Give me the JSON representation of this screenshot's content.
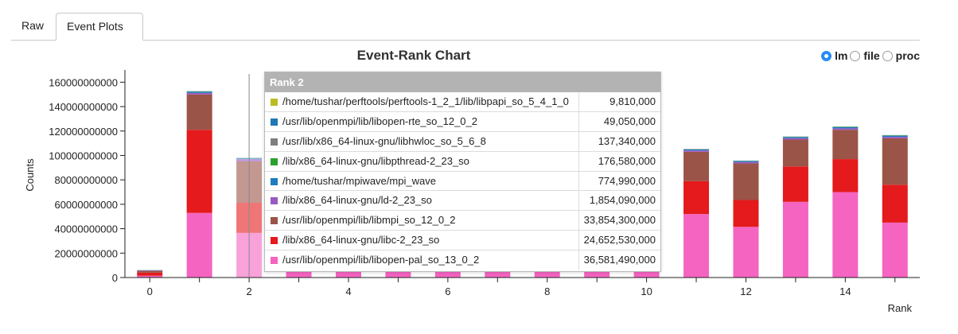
{
  "tabs": {
    "raw": "Raw",
    "event_plots": "Event Plots"
  },
  "chart_data": {
    "type": "bar",
    "title": "Event-Rank Chart",
    "xlabel": "Rank",
    "ylabel": "Counts",
    "ylim": [
      0,
      170000000000
    ],
    "xlim": [
      -0.5,
      15.5
    ],
    "yticks": [
      0,
      20000000000,
      40000000000,
      60000000000,
      80000000000,
      100000000000,
      120000000000,
      140000000000,
      160000000000
    ],
    "ytick_labels": [
      "0",
      "20000000000",
      "40000000000",
      "60000000000",
      "80000000000",
      "100000000000",
      "120000000000",
      "140000000000",
      "160000000000"
    ],
    "xticks": [
      0,
      2,
      4,
      6,
      8,
      10,
      12,
      14
    ],
    "xtick_labels": [
      "0",
      "2",
      "4",
      "6",
      "8",
      "10",
      "12",
      "14"
    ],
    "categories": [
      0,
      1,
      2,
      3,
      4,
      5,
      6,
      7,
      8,
      9,
      10,
      11,
      12,
      13,
      14,
      15
    ],
    "stacked": true,
    "series": [
      {
        "name": "/usr/lib/openmpi/lib/libopen-pal.so.13.0.2",
        "color": "#f564c1",
        "values": [
          1500000000,
          53000000000,
          36581490000,
          45000000000,
          41000000000,
          40000000000,
          42000000000,
          44000000000,
          47000000000,
          42000000000,
          43000000000,
          52000000000,
          41500000000,
          62000000000,
          70000000000,
          45000000000
        ]
      },
      {
        "name": "/lib/x86_64-linux-gnu/libc-2.23.so",
        "color": "#e41a1c",
        "values": [
          2500000000,
          68000000000,
          24652530000,
          49000000000,
          39000000000,
          24000000000,
          28000000000,
          27000000000,
          70000000000,
          35000000000,
          31000000000,
          27000000000,
          22000000000,
          29000000000,
          27000000000,
          31000000000
        ]
      },
      {
        "name": "/usr/lib/openmpi/lib/libmpi.so.12.0.2",
        "color": "#9b5448",
        "values": [
          1500000000,
          29000000000,
          33854300000,
          42000000000,
          23000000000,
          22000000000,
          26000000000,
          29000000000,
          22000000000,
          21000000000,
          27000000000,
          24000000000,
          30000000000,
          22000000000,
          24000000000,
          38000000000
        ]
      },
      {
        "name": "/lib/x86_64-linux-gnu/ld-2.23.so",
        "color": "#9a59c2",
        "values": [
          300000000,
          1200000000,
          1854090000,
          1200000000,
          1200000000,
          1100000000,
          1100000000,
          1100000000,
          1100000000,
          1100000000,
          1100000000,
          1100000000,
          1100000000,
          1200000000,
          1200000000,
          1200000000
        ]
      },
      {
        "name": "/home/tushar/mpiwave/mpi_wave",
        "color": "#1f7bbf",
        "values": [
          200000000,
          1000000000,
          774990000,
          1000000000,
          800000000,
          800000000,
          800000000,
          800000000,
          800000000,
          800000000,
          800000000,
          800000000,
          800000000,
          900000000,
          1000000000,
          1000000000
        ]
      },
      {
        "name": "/lib/x86_64-linux-gnu/libpthread-2.23.so",
        "color": "#2ca02c",
        "values": [
          50000000,
          300000000,
          176580000,
          300000000,
          200000000,
          200000000,
          200000000,
          200000000,
          200000000,
          200000000,
          200000000,
          200000000,
          200000000,
          200000000,
          300000000,
          300000000
        ]
      },
      {
        "name": "/usr/lib/x86_64-linux-gnu/libhwloc.so.5.6.8",
        "color": "#7f7f7f",
        "values": [
          30000000,
          150000000,
          137340000,
          150000000,
          140000000,
          140000000,
          140000000,
          140000000,
          140000000,
          140000000,
          140000000,
          140000000,
          140000000,
          150000000,
          150000000,
          150000000
        ]
      },
      {
        "name": "/usr/lib/openmpi/lib/libopen-rte.so.12.0.2",
        "color": "#1f77b4",
        "values": [
          20000000,
          50000000,
          49050000,
          50000000,
          50000000,
          50000000,
          50000000,
          50000000,
          50000000,
          50000000,
          50000000,
          50000000,
          50000000,
          50000000,
          50000000,
          50000000
        ]
      },
      {
        "name": "/home/tushar/perftools/perftools-1.2.1/lib/libpapi.so.5.4.1.0",
        "color": "#bcbd22",
        "values": [
          5000000,
          10000000,
          9810000,
          10000000,
          10000000,
          10000000,
          10000000,
          10000000,
          10000000,
          10000000,
          10000000,
          10000000,
          10000000,
          10000000,
          10000000,
          10000000
        ]
      }
    ],
    "highlighted_rank": 2
  },
  "mode_selector": {
    "options": [
      {
        "label": "lm",
        "selected": true
      },
      {
        "label": "file",
        "selected": false
      },
      {
        "label": "proc",
        "selected": false
      }
    ]
  },
  "tooltip": {
    "title": "Rank 2",
    "rows": [
      {
        "name": "/home/tushar/perftools/perftools-1_2_1/lib/libpapi_so_5_4_1_0",
        "value": "9,810,000",
        "color": "#bcbd22"
      },
      {
        "name": "/usr/lib/openmpi/lib/libopen-rte_so_12_0_2",
        "value": "49,050,000",
        "color": "#1f77b4"
      },
      {
        "name": "/usr/lib/x86_64-linux-gnu/libhwloc_so_5_6_8",
        "value": "137,340,000",
        "color": "#7f7f7f"
      },
      {
        "name": "/lib/x86_64-linux-gnu/libpthread-2_23_so",
        "value": "176,580,000",
        "color": "#2ca02c"
      },
      {
        "name": "/home/tushar/mpiwave/mpi_wave",
        "value": "774,990,000",
        "color": "#1f7bbf"
      },
      {
        "name": "/lib/x86_64-linux-gnu/ld-2_23_so",
        "value": "1,854,090,000",
        "color": "#9a59c2"
      },
      {
        "name": "/usr/lib/openmpi/lib/libmpi_so_12_0_2",
        "value": "33,854,300,000",
        "color": "#9b5448"
      },
      {
        "name": "/lib/x86_64-linux-gnu/libc-2_23_so",
        "value": "24,652,530,000",
        "color": "#e41a1c"
      },
      {
        "name": "/usr/lib/openmpi/lib/libopen-pal_so_13_0_2",
        "value": "36,581,490,000",
        "color": "#f564c1"
      }
    ]
  }
}
